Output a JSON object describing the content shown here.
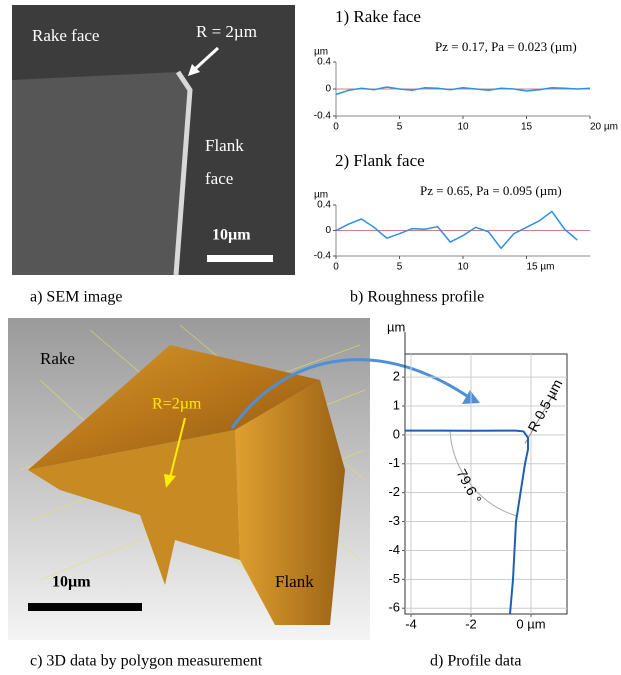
{
  "panels": {
    "sem": {
      "rake": "Rake face",
      "radius": "R = 2µm",
      "flank_1": "Flank",
      "flank_2": "face",
      "scale": "10µm",
      "caption": "a) SEM image"
    },
    "roughness": {
      "caption": "b) Roughness profile"
    },
    "model": {
      "rake": "Rake",
      "radius": "R=2µm",
      "scale": "10µm",
      "flank": "Flank",
      "caption": "c) 3D data by polygon measurement"
    },
    "profile": {
      "caption": "d) Profile data"
    }
  },
  "chart_data": [
    {
      "type": "line",
      "title": "1) Rake face",
      "subtitle": "Pz = 0.17, Pa = 0.023 (µm)",
      "y_label": "µm",
      "x": [
        0,
        1,
        2,
        3,
        4,
        5,
        6,
        7,
        8,
        9,
        10,
        11,
        12,
        13,
        14,
        15,
        16,
        17,
        18,
        19,
        20
      ],
      "values": [
        -0.08,
        -0.02,
        0.01,
        -0.01,
        0.03,
        0.0,
        -0.02,
        0.02,
        0.01,
        -0.01,
        0.02,
        0.0,
        -0.02,
        0.01,
        0.0,
        -0.03,
        -0.01,
        0.02,
        0.01,
        0.0,
        0.01
      ],
      "color": "#2f8fe0",
      "xlim": [
        0,
        20
      ],
      "ylim": [
        -0.4,
        0.4
      ],
      "xticks": [
        0,
        5,
        10,
        15,
        {
          "value": 20,
          "label": "20 µm"
        }
      ],
      "yticks": [
        0.4,
        0,
        -0.4
      ],
      "zero_line": true
    },
    {
      "type": "line",
      "title": "2) Flank face",
      "subtitle": "Pz = 0.65, Pa = 0.095 (µm)",
      "y_label": "µm",
      "x": [
        0,
        1,
        2,
        3,
        4,
        5,
        6,
        7,
        8,
        9,
        10,
        11,
        12,
        13,
        14,
        15,
        16,
        17,
        18,
        19
      ],
      "values": [
        0.0,
        0.1,
        0.18,
        0.05,
        -0.12,
        -0.05,
        0.03,
        0.02,
        0.06,
        -0.18,
        -0.08,
        0.05,
        -0.02,
        -0.28,
        -0.05,
        0.05,
        0.15,
        0.3,
        0.02,
        -0.15
      ],
      "color": "#2f8fe0",
      "xlim": [
        0,
        20
      ],
      "ylim": [
        -0.4,
        0.4
      ],
      "xticks": [
        0,
        5,
        10,
        {
          "value": 15,
          "label": "15 µm"
        }
      ],
      "yticks": [
        0.4,
        0,
        -0.4
      ],
      "zero_line": true
    },
    {
      "type": "line",
      "y_label": "µm",
      "annotations": [
        "R 0.5 µm",
        "79.6 °"
      ],
      "x": [
        -4.2,
        -3,
        -2,
        -1,
        -0.5,
        -0.25,
        -0.1,
        -0.1,
        -0.2,
        -0.35,
        -0.5,
        -0.55,
        -0.6,
        -0.7
      ],
      "values": [
        0.15,
        0.15,
        0.14,
        0.15,
        0.15,
        0.12,
        -0.1,
        -0.5,
        -1,
        -2,
        -3,
        -4,
        -5,
        -6.2
      ],
      "color": "#1f5fb0",
      "xlim": [
        -4.2,
        1.2
      ],
      "ylim": [
        -6.2,
        2.8
      ],
      "xticks": [
        -4,
        -2,
        {
          "value": 0,
          "label": "0 µm"
        }
      ],
      "yticks": [
        2,
        1,
        0,
        -1,
        -2,
        -3,
        -4,
        -5,
        -6
      ],
      "grid": true
    }
  ]
}
